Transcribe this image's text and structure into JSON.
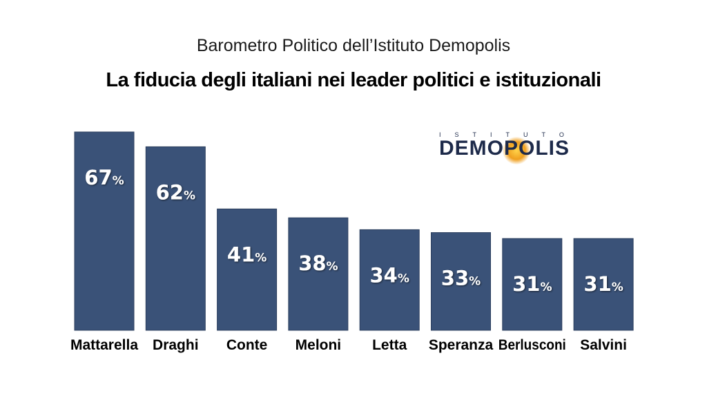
{
  "chart_data": {
    "type": "bar",
    "subtitle": "Barometro Politico dell’Istituto Demopolis",
    "title": "La fiducia degli italiani nei leader politici e istituzionali",
    "categories": [
      "Mattarella",
      "Draghi",
      "Conte",
      "Meloni",
      "Letta",
      "Speranza",
      "Berlusconi",
      "Salvini"
    ],
    "values": [
      67,
      62,
      41,
      38,
      34,
      33,
      31,
      31
    ],
    "value_suffix": "%",
    "ylim": [
      0,
      67
    ],
    "grid": false,
    "legend": "none",
    "bar_color": "#3a5278",
    "label_color": "#ffffff"
  },
  "logo": {
    "top_text": "ISTITUTO",
    "main_text": "DEMOPOLIS"
  },
  "colors": {
    "text": "#000000",
    "logo": "#1d2a4a"
  }
}
